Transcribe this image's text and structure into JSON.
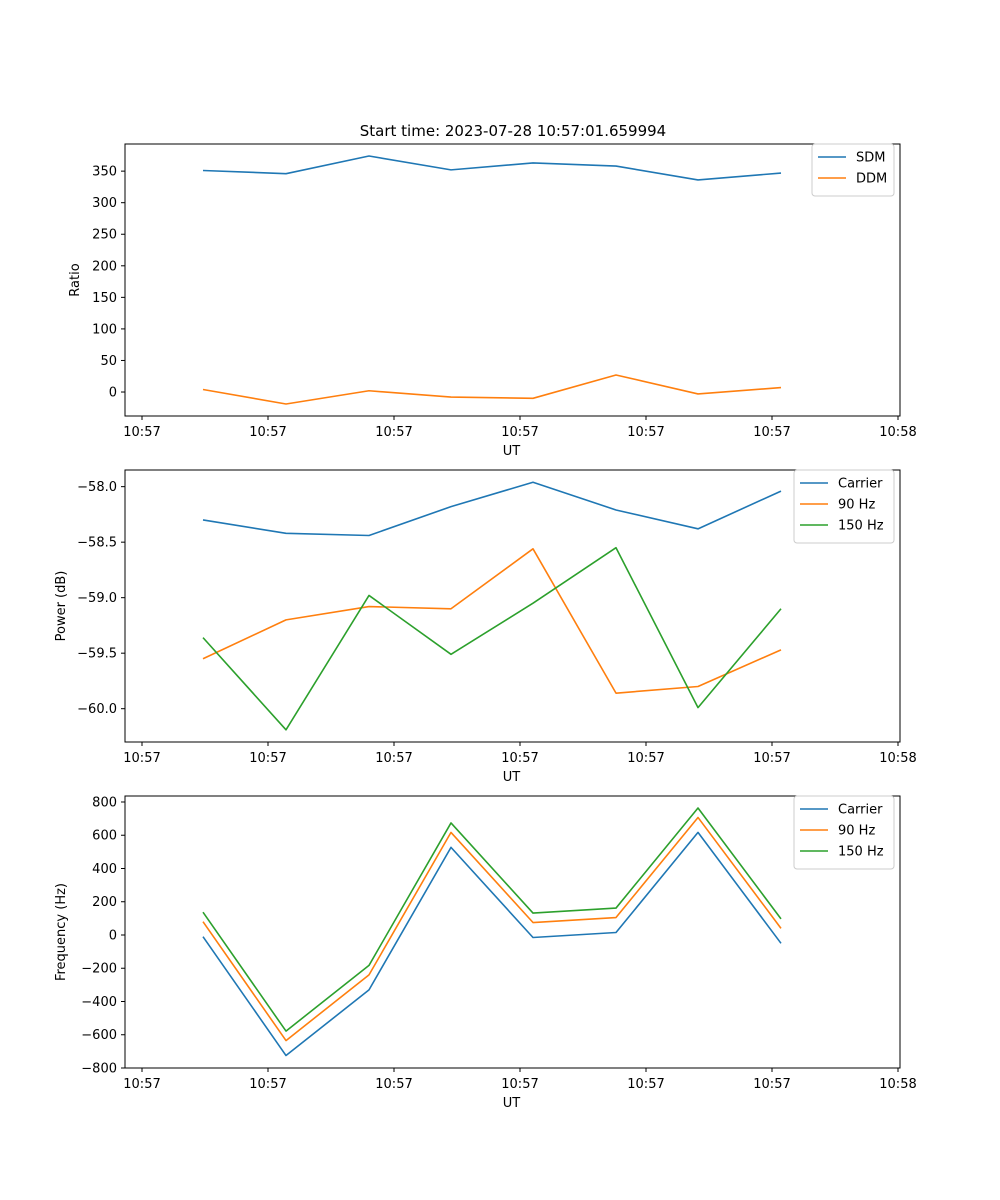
{
  "figure_title": "Start time: 2023-07-28 10:57:01.659994",
  "chart_data": [
    {
      "type": "line",
      "xlabel": "UT",
      "ylabel": "Ratio",
      "x_tick_labels": [
        "10:57",
        "10:57",
        "10:57",
        "10:57",
        "10:57",
        "10:57",
        "10:58"
      ],
      "y_ticks": [
        0,
        50,
        100,
        150,
        200,
        250,
        300,
        350
      ],
      "ylim": [
        -38,
        393
      ],
      "legend_position": "top-right",
      "series": [
        {
          "name": "SDM",
          "color": "#1f77b4",
          "values": [
            351,
            346,
            374,
            352,
            363,
            358,
            336,
            347
          ]
        },
        {
          "name": "DDM",
          "color": "#ff7f0e",
          "values": [
            4,
            -19,
            2,
            -8,
            -10,
            27,
            -3,
            7
          ]
        }
      ]
    },
    {
      "type": "line",
      "xlabel": "UT",
      "ylabel": "Power (dB)",
      "x_tick_labels": [
        "10:57",
        "10:57",
        "10:57",
        "10:57",
        "10:57",
        "10:57",
        "10:58"
      ],
      "y_ticks": [
        -60.0,
        -59.5,
        -59.0,
        -58.5,
        -58.0
      ],
      "y_tick_labels": [
        "−60.0",
        "−59.5",
        "−59.0",
        "−58.5",
        "−58.0"
      ],
      "ylim": [
        -60.3,
        -57.85
      ],
      "legend_position": "top-right",
      "series": [
        {
          "name": "Carrier",
          "color": "#1f77b4",
          "values": [
            -58.3,
            -58.42,
            -58.44,
            -58.18,
            -57.96,
            -58.21,
            -58.38,
            -58.04
          ]
        },
        {
          "name": "90 Hz",
          "color": "#ff7f0e",
          "values": [
            -59.55,
            -59.2,
            -59.08,
            -59.1,
            -58.56,
            -59.86,
            -59.8,
            -59.47
          ]
        },
        {
          "name": "150 Hz",
          "color": "#2ca02c",
          "values": [
            -59.36,
            -60.19,
            -58.98,
            -59.51,
            -59.05,
            -58.55,
            -59.99,
            -59.1
          ]
        }
      ]
    },
    {
      "type": "line",
      "xlabel": "UT",
      "ylabel": "Frequency (Hz)",
      "x_tick_labels": [
        "10:57",
        "10:57",
        "10:57",
        "10:57",
        "10:57",
        "10:57",
        "10:58"
      ],
      "y_ticks": [
        -800,
        -600,
        -400,
        -200,
        0,
        200,
        400,
        600,
        800
      ],
      "y_tick_labels": [
        "−800",
        "−600",
        "−400",
        "−200",
        "0",
        "200",
        "400",
        "600",
        "800"
      ],
      "ylim": [
        -800,
        836
      ],
      "legend_position": "top-right",
      "series": [
        {
          "name": "Carrier",
          "color": "#1f77b4",
          "values": [
            -10,
            -725,
            -330,
            527,
            -15,
            15,
            617,
            -50
          ]
        },
        {
          "name": "90 Hz",
          "color": "#ff7f0e",
          "values": [
            80,
            -635,
            -240,
            617,
            75,
            105,
            707,
            40
          ]
        },
        {
          "name": "150 Hz",
          "color": "#2ca02c",
          "values": [
            137,
            -578,
            -183,
            674,
            132,
            162,
            764,
            97
          ]
        }
      ]
    }
  ]
}
